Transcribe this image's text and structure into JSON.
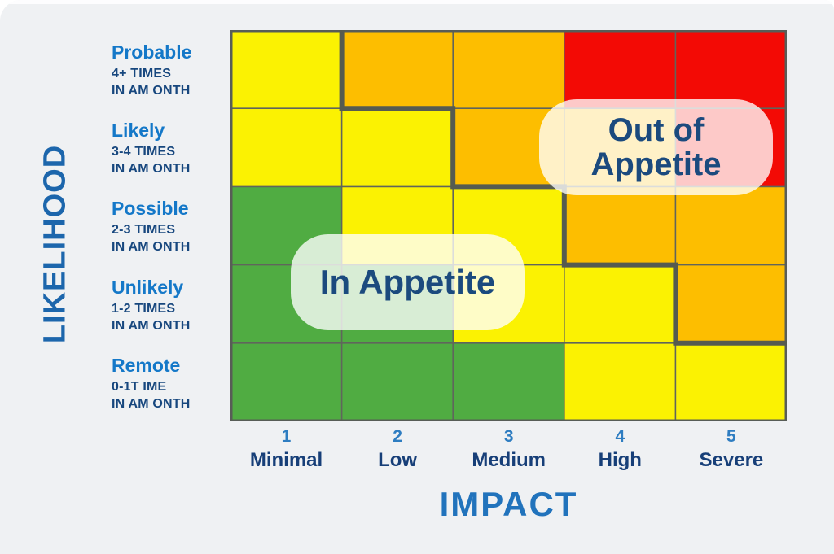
{
  "page": {
    "background": "#EFF1F3"
  },
  "colors": {
    "green": "#50AC42",
    "yellow": "#FBF202",
    "orange": "#FDBE00",
    "red": "#F30A05",
    "grid_line": "#60655C",
    "grid_border": "#585D57",
    "boundary_line": "#565B50",
    "category_heading_blue": "#1478C8",
    "category_sub_navy": "#17477E",
    "axis_number_blue": "#2E7DC1",
    "axis_label_navy": "#173F78",
    "impact_title_blue": "#2173BC",
    "likelihood_title_blue": "#1C66AC",
    "zone_text_navy": "#1B4A7E",
    "zone_overlay_white": "rgba(255,255,255,0.78)"
  },
  "y_axis": {
    "title": "LIKELIHOOD",
    "categories": [
      {
        "label": "Probable",
        "frequency_line1": "4+ TIMES",
        "frequency_line2": "IN AM ONTH"
      },
      {
        "label": "Likely",
        "frequency_line1": "3-4 TIMES",
        "frequency_line2": "IN AM ONTH"
      },
      {
        "label": "Possible",
        "frequency_line1": "2-3 TIMES",
        "frequency_line2": "IN AM ONTH"
      },
      {
        "label": "Unlikely",
        "frequency_line1": "1-2 TIMES",
        "frequency_line2": "IN AM ONTH"
      },
      {
        "label": "Remote",
        "frequency_line1": "0-1T IME",
        "frequency_line2": "IN AM ONTH"
      }
    ]
  },
  "x_axis": {
    "title": "IMPACT",
    "categories": [
      {
        "number": "1",
        "label": "Minimal"
      },
      {
        "number": "2",
        "label": "Low"
      },
      {
        "number": "3",
        "label": "Medium"
      },
      {
        "number": "4",
        "label": "High"
      },
      {
        "number": "5",
        "label": "Severe"
      }
    ]
  },
  "zones": {
    "in_appetite": {
      "label": "In Appetite"
    },
    "out_of_appetite": {
      "line1": "Out of",
      "line2": "Appetite"
    }
  },
  "chart_data": {
    "type": "heatmap",
    "title": "",
    "xlabel": "IMPACT",
    "ylabel": "LIKELIHOOD",
    "x_categories": [
      "1 Minimal",
      "2 Low",
      "3 Medium",
      "4 High",
      "5 Severe"
    ],
    "y_categories": [
      "Probable (4+ TIMES IN AM ONTH)",
      "Likely (3-4 TIMES IN AM ONTH)",
      "Possible (2-3 TIMES IN AM ONTH)",
      "Unlikely (1-2 TIMES IN AM ONTH)",
      "Remote (0-1T IME IN AM ONTH)"
    ],
    "cells": [
      [
        "yellow",
        "orange",
        "orange",
        "red",
        "red"
      ],
      [
        "yellow",
        "yellow",
        "orange",
        "orange",
        "red"
      ],
      [
        "green",
        "yellow",
        "yellow",
        "orange",
        "orange"
      ],
      [
        "green",
        "green",
        "yellow",
        "yellow",
        "orange"
      ],
      [
        "green",
        "green",
        "green",
        "yellow",
        "yellow"
      ]
    ],
    "annotations": [
      {
        "text": "In Appetite",
        "position": "lower-left of boundary"
      },
      {
        "text": "Out of Appetite",
        "position": "upper-right of boundary"
      }
    ],
    "layout": {
      "grid": true,
      "legend": false,
      "boundary": "thick stepped line separating In Appetite (lower-left) from Out of Appetite (upper-right)"
    }
  }
}
